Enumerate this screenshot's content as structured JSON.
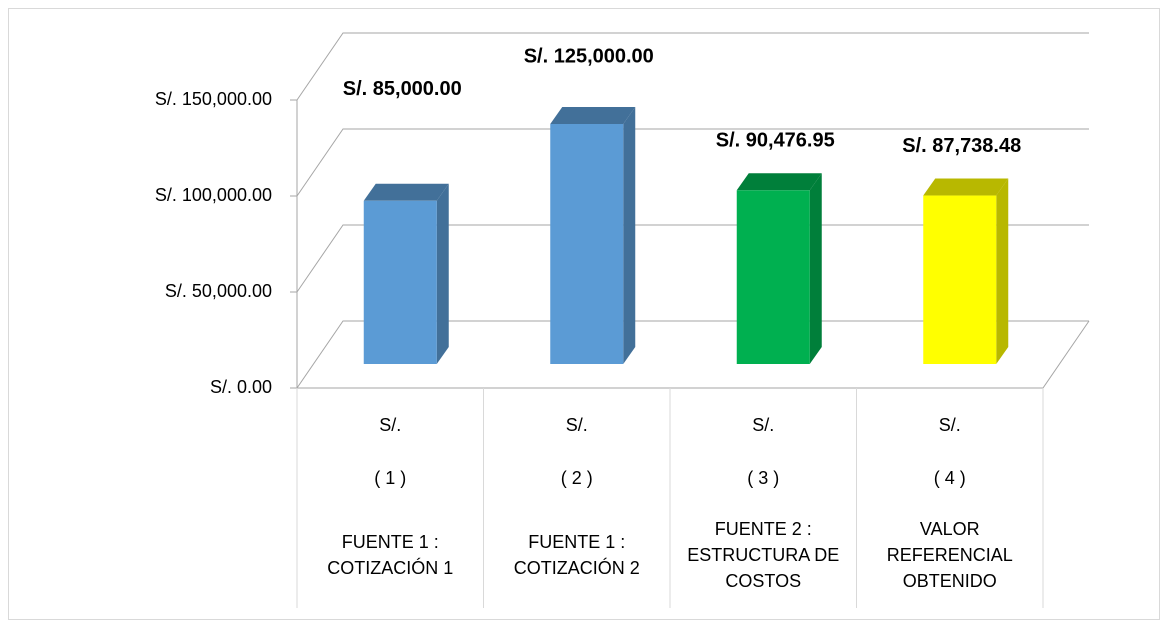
{
  "chart_data": {
    "type": "bar3d",
    "categories": [
      {
        "unit": "S/.",
        "index": "( 1 )",
        "label": "FUENTE 1 : COTIZACIÓN 1"
      },
      {
        "unit": "S/.",
        "index": "( 2 )",
        "label": "FUENTE 1 : COTIZACIÓN 2"
      },
      {
        "unit": "S/.",
        "index": "( 3 )",
        "label": "FUENTE 2 : ESTRUCTURA DE COSTOS"
      },
      {
        "unit": "S/.",
        "index": "( 4 )",
        "label": "VALOR REFERENCIAL OBTENIDO"
      }
    ],
    "values": [
      85000,
      125000,
      90476.95,
      87738.48
    ],
    "value_labels": [
      "S/. 85,000.00",
      "S/. 125,000.00",
      "S/. 90,476.95",
      "S/. 87,738.48"
    ],
    "colors": [
      "#5b9bd5",
      "#5b9bd5",
      "#00b050",
      "#ffff00"
    ],
    "ylim": [
      0,
      150000
    ],
    "yticks": [
      {
        "value": 0,
        "label": "S/. 0.00"
      },
      {
        "value": 50000,
        "label": "S/. 50,000.00"
      },
      {
        "value": 100000,
        "label": "S/. 100,000.00"
      },
      {
        "value": 150000,
        "label": "S/. 150,000.00"
      }
    ],
    "grid": true
  }
}
